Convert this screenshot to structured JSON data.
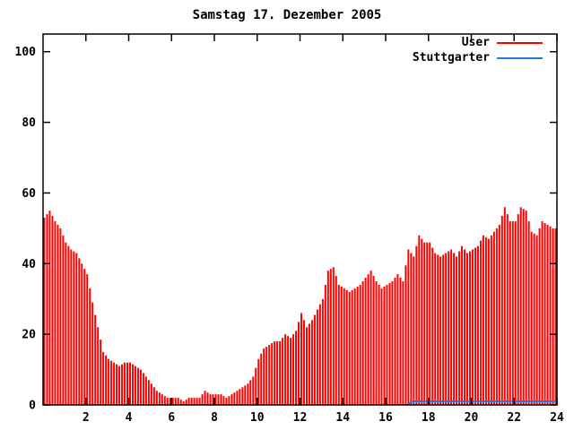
{
  "window": {
    "background": "#ffffff"
  },
  "chart_data": {
    "type": "bar",
    "title": "Samstag 17. Dezember 2005",
    "xlabel": "",
    "ylabel": "",
    "xlim": [
      0,
      24
    ],
    "ylim": [
      0,
      105
    ],
    "xticks": [
      2,
      4,
      6,
      8,
      10,
      12,
      14,
      16,
      18,
      20,
      22,
      24
    ],
    "yticks": [
      0,
      20,
      40,
      60,
      80,
      100
    ],
    "grid": false,
    "x_unit": "hour of day",
    "x_start": 0,
    "sample_interval_hours": 0.25,
    "legend": {
      "position": "top-right-inside",
      "entries": [
        "User",
        "Stuttgarter"
      ]
    },
    "axis_color": "#000000",
    "series": [
      {
        "name": "User",
        "style": "impulses",
        "color": "#ff0000",
        "values": [
          53,
          55,
          52,
          50,
          46,
          44,
          43,
          40,
          37,
          29,
          22,
          15,
          13,
          12,
          11,
          12,
          12,
          11,
          10,
          8,
          6,
          4,
          3,
          2,
          2,
          2,
          1,
          2,
          2,
          2,
          4,
          3,
          3,
          3,
          2,
          3,
          4,
          5,
          6,
          8,
          13,
          16,
          17,
          18,
          18,
          20,
          19,
          21,
          26,
          22,
          24,
          27,
          30,
          38,
          39,
          34,
          33,
          32,
          33,
          34,
          36,
          38,
          35,
          33,
          34,
          35,
          37,
          35,
          44,
          42,
          48,
          46,
          46,
          43,
          42,
          43,
          44,
          42,
          45,
          43,
          44,
          45,
          48,
          47,
          49,
          51,
          56,
          52,
          52,
          56,
          55,
          49,
          48,
          52,
          51,
          50
        ]
      },
      {
        "name": "Stuttgarter",
        "style": "lines",
        "color": "#1a7cdf",
        "values": [
          null,
          null,
          null,
          null,
          null,
          null,
          null,
          null,
          null,
          null,
          null,
          null,
          null,
          null,
          null,
          null,
          null,
          null,
          null,
          null,
          null,
          null,
          null,
          null,
          null,
          null,
          null,
          null,
          null,
          null,
          null,
          null,
          null,
          null,
          null,
          null,
          null,
          null,
          null,
          null,
          null,
          null,
          null,
          null,
          null,
          null,
          null,
          null,
          null,
          null,
          null,
          null,
          null,
          null,
          null,
          null,
          null,
          null,
          null,
          null,
          null,
          null,
          null,
          null,
          null,
          null,
          null,
          null,
          0,
          1,
          1,
          1,
          1,
          1,
          1,
          1,
          1,
          1,
          1,
          1,
          1,
          1,
          1,
          1,
          1,
          1,
          1,
          1,
          1,
          1,
          1,
          1,
          1,
          1,
          1,
          1
        ]
      }
    ]
  }
}
